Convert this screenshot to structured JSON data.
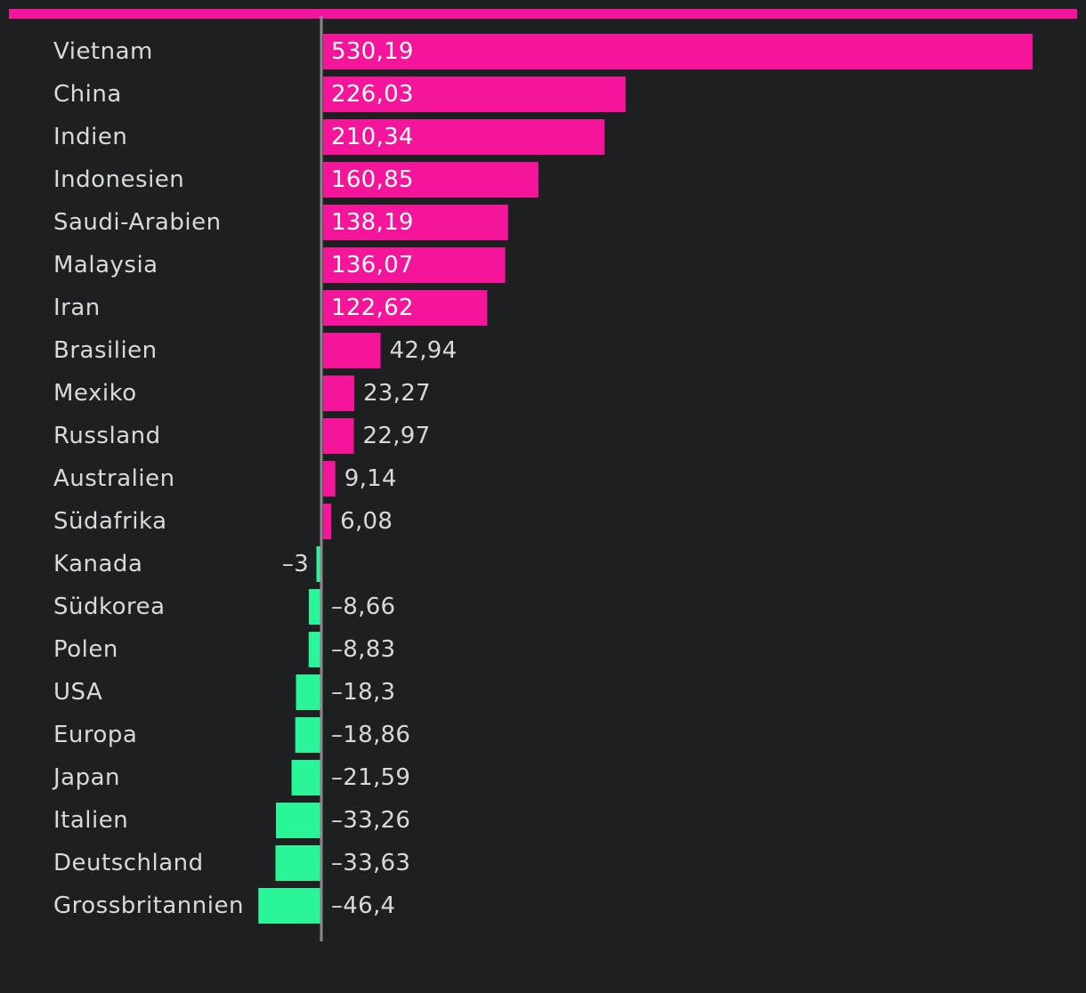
{
  "chart_data": {
    "type": "bar",
    "orientation": "horizontal",
    "categories": [
      "Vietnam",
      "China",
      "Indien",
      "Indonesien",
      "Saudi-Arabien",
      "Malaysia",
      "Iran",
      "Brasilien",
      "Mexiko",
      "Russland",
      "Australien",
      "Südafrika",
      "Kanada",
      "Südkorea",
      "Polen",
      "USA",
      "Europa",
      "Japan",
      "Italien",
      "Deutschland",
      "Grossbritannien"
    ],
    "values": [
      530.19,
      226.03,
      210.34,
      160.85,
      138.19,
      136.07,
      122.62,
      42.94,
      23.27,
      22.97,
      9.14,
      6.08,
      -3,
      -8.66,
      -8.83,
      -18.3,
      -18.86,
      -21.59,
      -33.26,
      -33.63,
      -46.4
    ],
    "value_labels": [
      "530,19",
      "226,03",
      "210,34",
      "160,85",
      "138,19",
      "136,07",
      "122,62",
      "42,94",
      "23,27",
      "22,97",
      "9,14",
      "6,08",
      "–3",
      "–8,66",
      "–8,83",
      "–18,3",
      "–18,86",
      "–21,59",
      "–33,26",
      "–33,63",
      "–46,4"
    ],
    "title": "",
    "xlabel": "",
    "ylabel": "",
    "grid": false,
    "colors": {
      "positive": "#f5159b",
      "negative": "#2af598",
      "background": "#1e1f21",
      "axis": "#8a8a8a",
      "label": "#d9d9d9",
      "label_on_bar": "#ffffff",
      "accent_bar": "#f5159b"
    }
  }
}
